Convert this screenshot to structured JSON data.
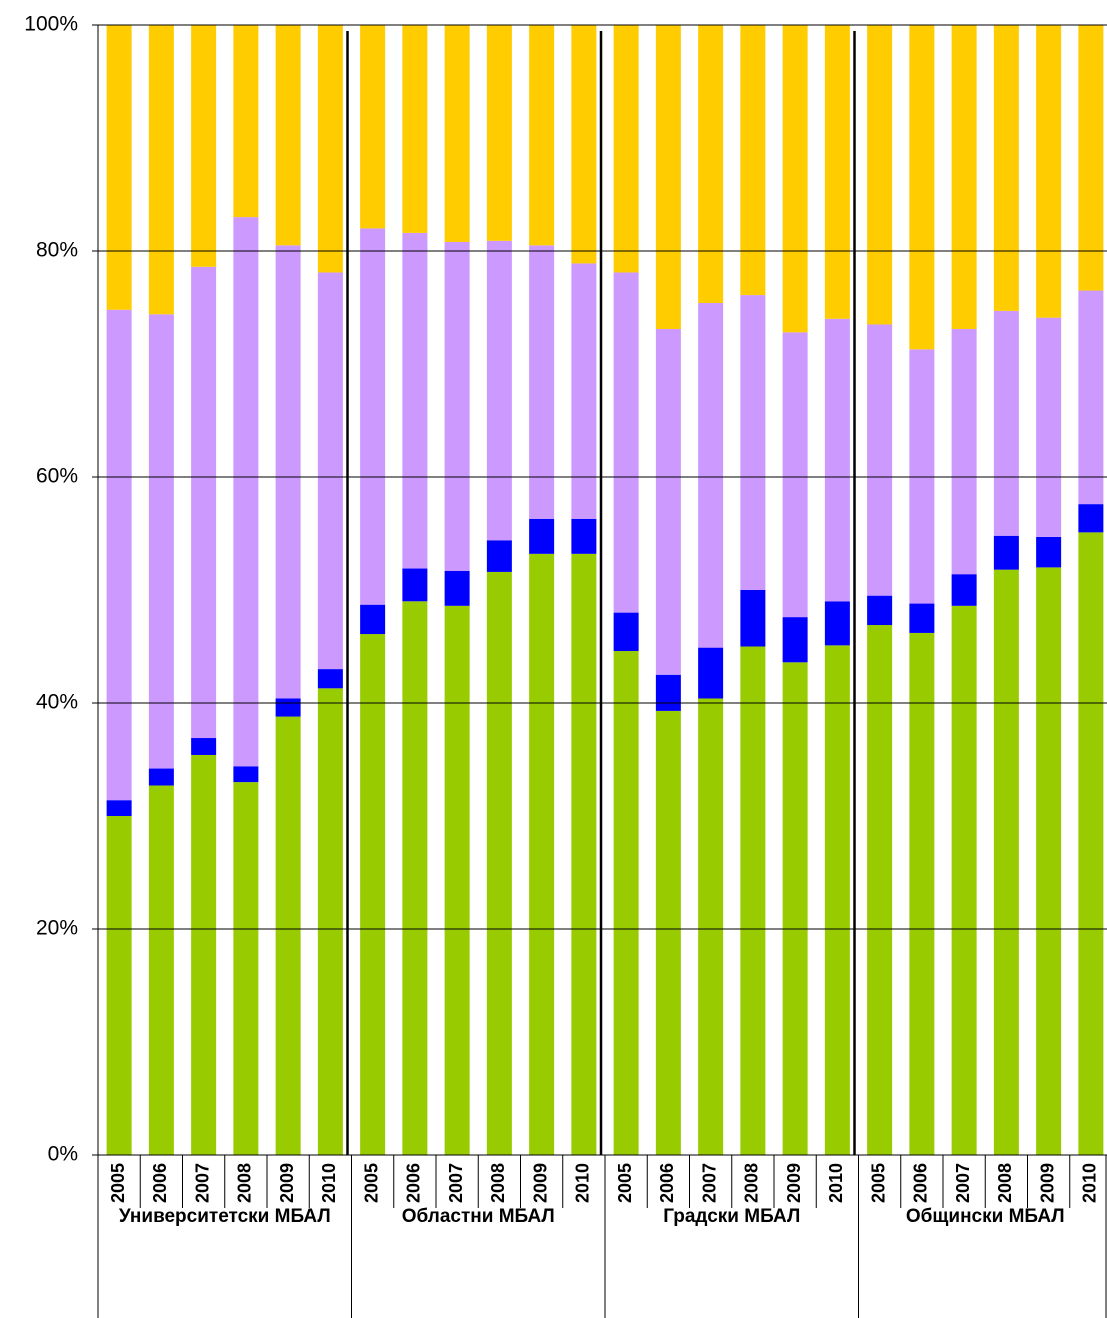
{
  "chart_data": {
    "type": "stacked_bar",
    "categories": [
      "2005",
      "2006",
      "2007",
      "2008",
      "2009",
      "2010",
      "2005",
      "2006",
      "2007",
      "2008",
      "2009",
      "2010",
      "2005",
      "2006",
      "2007",
      "2008",
      "2009",
      "2010",
      "2005",
      "2006",
      "2007",
      "2008",
      "2009",
      "2010"
    ],
    "groups": [
      "Университетски МБАЛ",
      "Областни МБАЛ",
      "Градски МБАЛ",
      "Общински МБАЛ"
    ],
    "series": [
      {
        "color": "#99cc00",
        "values": [
          30.0,
          32.7,
          35.4,
          33.0,
          38.8,
          41.3,
          46.1,
          49.0,
          48.6,
          51.6,
          53.2,
          53.2,
          44.6,
          39.3,
          40.4,
          45.0,
          43.6,
          45.1,
          46.9,
          46.2,
          48.6,
          51.8,
          52.0,
          55.1
        ]
      },
      {
        "color": "#0000ff",
        "values": [
          1.4,
          1.5,
          1.5,
          1.4,
          1.6,
          1.7,
          2.6,
          2.9,
          3.1,
          2.8,
          3.1,
          3.1,
          3.4,
          3.2,
          4.5,
          5.0,
          4.0,
          3.9,
          2.6,
          2.6,
          2.8,
          3.0,
          2.7,
          2.5
        ]
      },
      {
        "color": "#cc99ff",
        "values": [
          43.4,
          40.2,
          41.7,
          48.6,
          40.1,
          35.1,
          33.3,
          29.7,
          29.1,
          26.5,
          24.2,
          22.6,
          30.1,
          30.6,
          30.5,
          26.1,
          25.2,
          25.0,
          24.0,
          22.5,
          21.7,
          19.9,
          19.4,
          18.9
        ]
      },
      {
        "color": "#ffcc00",
        "values": [
          25.2,
          25.6,
          21.4,
          17.0,
          19.5,
          21.9,
          18.0,
          18.4,
          19.2,
          19.1,
          19.5,
          21.1,
          21.9,
          26.9,
          24.6,
          23.9,
          27.2,
          26.0,
          26.5,
          28.7,
          26.9,
          25.3,
          25.9,
          23.5
        ]
      }
    ],
    "ylim": [
      0,
      100
    ],
    "yticks": [
      {
        "value": 0,
        "label": "0%"
      },
      {
        "value": 20,
        "label": "20%"
      },
      {
        "value": 40,
        "label": "40%"
      },
      {
        "value": 60,
        "label": "60%"
      },
      {
        "value": 80,
        "label": "80%"
      },
      {
        "value": 100,
        "label": "100%"
      }
    ],
    "grid": true
  }
}
